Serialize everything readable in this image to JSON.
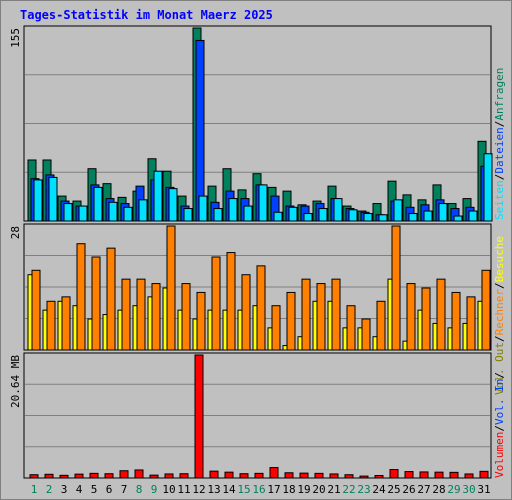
{
  "title": "Tages-Statistik im Monat Maerz 2025",
  "colors": {
    "background": "#C0C0C0",
    "panel": "#C0C0C0",
    "grid": "#808080",
    "title": "#0000FF",
    "anfragen": "#00805C",
    "dateien": "#0040FF",
    "seiten": "#00E0FF",
    "besuche": "#FFFF00",
    "rechner": "#FF8000",
    "volumen": "#FF0000",
    "weekday_label": "#000000",
    "weekend_label": "#00805C"
  },
  "legend": {
    "anfragen": "Anfragen",
    "dateien": "Dateien",
    "seiten": "Seiten",
    "besuche": "Besuche",
    "rechner": "Rechner",
    "vol_out": "Vol. Out",
    "vol_in": "Vol. In",
    "volumen": "Volumen",
    "sep": "/"
  },
  "chart_data": [
    {
      "type": "bar",
      "panel": "top",
      "y_max_label": "155",
      "ylim": [
        0,
        155
      ],
      "categories": [
        "1",
        "2",
        "3",
        "4",
        "5",
        "6",
        "7",
        "8",
        "9",
        "10",
        "11",
        "12",
        "13",
        "14",
        "15",
        "16",
        "17",
        "18",
        "19",
        "20",
        "21",
        "22",
        "23",
        "24",
        "25",
        "26",
        "27",
        "28",
        "29",
        "30",
        "31"
      ],
      "weekend": [
        "1",
        "2",
        "8",
        "9",
        "15",
        "16",
        "22",
        "23",
        "29",
        "30"
      ],
      "series": [
        {
          "name": "Anfragen",
          "values": [
            49,
            49,
            20,
            16,
            42,
            30,
            19,
            24,
            50,
            40,
            20,
            155,
            28,
            42,
            25,
            38,
            27,
            24,
            13,
            16,
            28,
            12,
            8,
            14,
            32,
            21,
            17,
            29,
            14,
            18,
            64
          ]
        },
        {
          "name": "Dateien",
          "values": [
            34,
            37,
            16,
            12,
            29,
            18,
            14,
            28,
            33,
            27,
            12,
            145,
            15,
            24,
            18,
            29,
            20,
            12,
            12,
            14,
            18,
            10,
            7,
            5,
            16,
            11,
            13,
            17,
            10,
            11,
            44
          ]
        },
        {
          "name": "Seiten",
          "values": [
            33,
            35,
            14,
            12,
            27,
            15,
            11,
            17,
            40,
            26,
            10,
            20,
            10,
            18,
            12,
            29,
            7,
            11,
            6,
            10,
            18,
            9,
            6,
            5,
            17,
            6,
            8,
            14,
            4,
            8,
            54
          ]
        }
      ]
    },
    {
      "type": "bar",
      "panel": "middle",
      "y_max_label": "28",
      "ylim": [
        0,
        28
      ],
      "series": [
        {
          "name": "Besuche",
          "values": [
            17,
            9,
            11,
            10,
            7,
            8,
            9,
            10,
            12,
            14,
            9,
            7,
            9,
            9,
            9,
            10,
            5,
            1,
            3,
            11,
            11,
            5,
            5,
            3,
            16,
            2,
            9,
            6,
            5,
            6,
            11
          ]
        },
        {
          "name": "Rechner",
          "values": [
            18,
            11,
            12,
            24,
            21,
            23,
            16,
            16,
            15,
            28,
            15,
            13,
            21,
            22,
            17,
            19,
            10,
            13,
            16,
            15,
            16,
            10,
            7,
            11,
            28,
            15,
            14,
            16,
            13,
            12,
            18
          ]
        }
      ]
    },
    {
      "type": "bar",
      "panel": "bottom",
      "y_max_label": "20.64 MB",
      "ylim": [
        0,
        20.64
      ],
      "series": [
        {
          "name": "Volumen",
          "values": [
            0.55,
            0.62,
            0.45,
            0.65,
            0.78,
            0.72,
            1.22,
            1.35,
            0.48,
            0.68,
            0.72,
            20.64,
            1.15,
            0.98,
            0.72,
            0.78,
            1.75,
            0.88,
            0.82,
            0.78,
            0.68,
            0.55,
            0.32,
            0.42,
            1.42,
            1.08,
            1.02,
            0.98,
            0.95,
            0.68,
            1.12
          ]
        }
      ]
    }
  ]
}
